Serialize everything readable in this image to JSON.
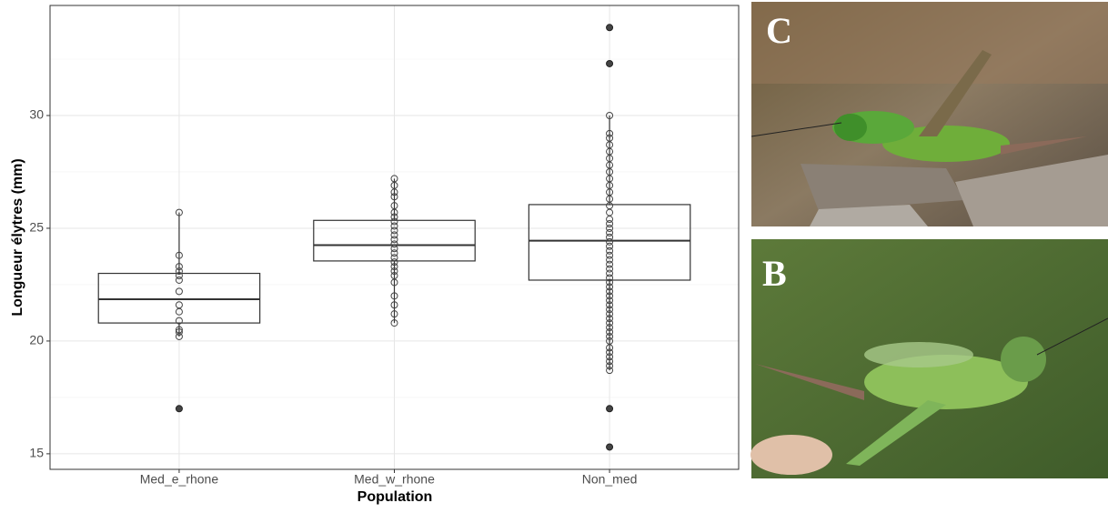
{
  "chart_data": {
    "type": "box",
    "x_label": "Population",
    "y_label": "Longueur élytres (mm)",
    "categories": [
      "Med_e_rhone",
      "Med_w_rhone",
      "Non_med"
    ],
    "boxes": [
      {
        "whislo": 20.2,
        "q1": 20.8,
        "median": 21.85,
        "q3": 23.0,
        "whishi": 25.7,
        "outliers": [
          17.0
        ]
      },
      {
        "whislo": 20.8,
        "q1": 23.55,
        "median": 24.25,
        "q3": 25.35,
        "whishi": 27.2,
        "outliers": []
      },
      {
        "whislo": 18.7,
        "q1": 22.7,
        "median": 24.45,
        "q3": 26.05,
        "whishi": 30.0,
        "outliers": [
          33.9,
          32.3,
          17.0,
          15.3
        ]
      }
    ],
    "points": [
      [
        25.7,
        23.8,
        23.3,
        23.1,
        22.9,
        22.7,
        22.2,
        21.6,
        21.3,
        20.9,
        20.5,
        20.4,
        20.2
      ],
      [
        27.2,
        26.9,
        26.6,
        26.4,
        26.0,
        25.7,
        25.5,
        25.3,
        25.1,
        24.9,
        24.7,
        24.5,
        24.3,
        24.1,
        23.9,
        23.7,
        23.5,
        23.3,
        23.1,
        22.9,
        22.6,
        22.0,
        21.6,
        21.2,
        20.8
      ],
      [
        30.0,
        29.2,
        29.0,
        28.7,
        28.4,
        28.1,
        27.8,
        27.5,
        27.2,
        26.9,
        26.6,
        26.3,
        26.0,
        25.7,
        25.4,
        25.2,
        25.0,
        24.8,
        24.6,
        24.4,
        24.2,
        24.0,
        23.8,
        23.6,
        23.4,
        23.2,
        23.0,
        22.8,
        22.6,
        22.4,
        22.2,
        22.0,
        21.8,
        21.6,
        21.4,
        21.2,
        21.0,
        20.8,
        20.6,
        20.4,
        20.2,
        20.0,
        19.7,
        19.5,
        19.3,
        19.1,
        18.9,
        18.7
      ]
    ],
    "ylim": [
      14.31,
      34.88
    ],
    "yticks": [
      15,
      20,
      25,
      30
    ],
    "grid": true,
    "box_color": "#333333",
    "point_color": "#444444"
  },
  "photos": [
    {
      "label": "C"
    },
    {
      "label": "B"
    }
  ]
}
